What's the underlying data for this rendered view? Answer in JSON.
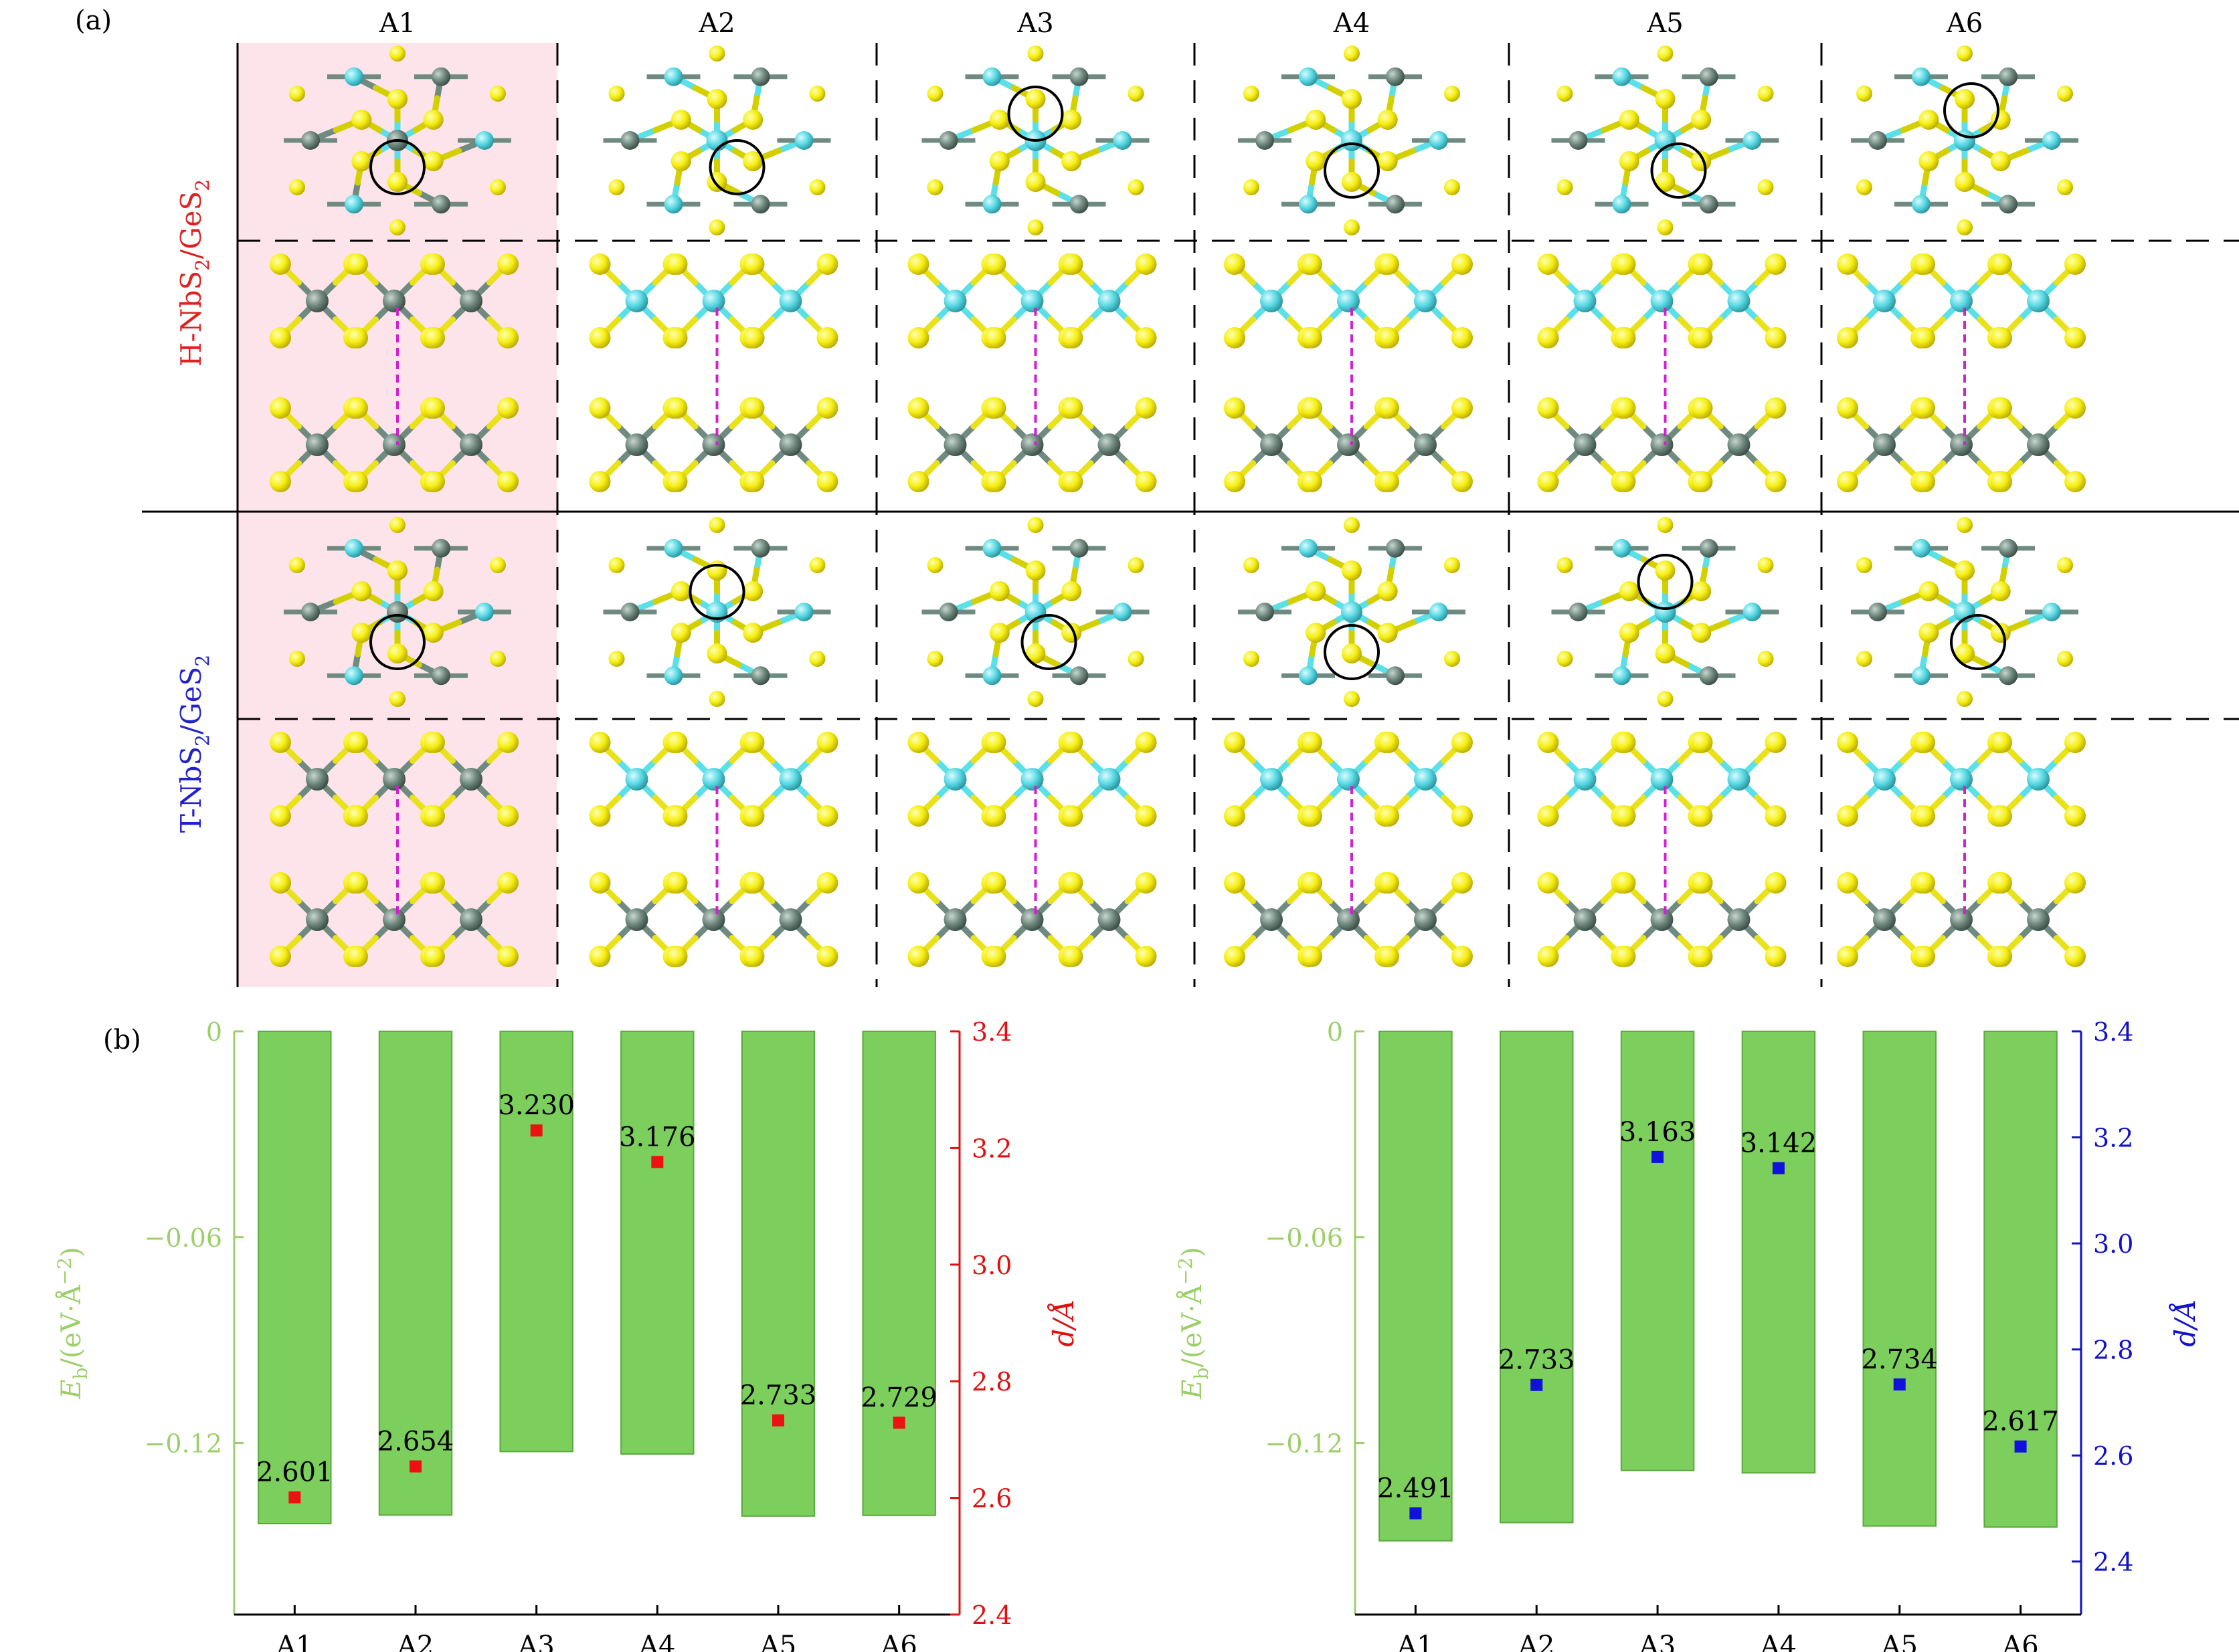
{
  "panel_a": {
    "label": "(a)",
    "columns": [
      "A1",
      "A2",
      "A3",
      "A4",
      "A5",
      "A6"
    ],
    "rows": [
      {
        "label_prefix": "H-NbS",
        "label_sub1": "2",
        "label_mid": "/GeS",
        "label_sub2": "2",
        "color": "#dd2222"
      },
      {
        "label_prefix": "T-NbS",
        "label_sub1": "2",
        "label_mid": "/GeS",
        "label_sub2": "2",
        "color": "#2222cc"
      }
    ],
    "highlight_color": "#fde4ea",
    "atom_colors": {
      "sulfur": "#ffff2a",
      "niobium": "#5ce0e8",
      "germanium": "#6f8a80"
    }
  },
  "panel_b_label": "(b)",
  "chart_data": [
    {
      "type": "bar",
      "categories": [
        "A1",
        "A2",
        "A3",
        "A4",
        "A5",
        "A6"
      ],
      "series": [
        {
          "axis": "left",
          "type": "bar",
          "values": [
            -0.1435,
            -0.141,
            -0.1225,
            -0.1232,
            -0.1413,
            -0.1411
          ],
          "color": "#7ccf5c"
        },
        {
          "axis": "right",
          "type": "scatter",
          "values": [
            2.601,
            2.654,
            3.23,
            3.176,
            2.733,
            2.729
          ],
          "labels": [
            "2.601",
            "2.654",
            "3.230",
            "3.176",
            "2.733",
            "2.729"
          ],
          "color": "#ee1111"
        }
      ],
      "ylabel_left": {
        "main": "E",
        "sub": "b",
        "rest": "/(eV·Å",
        "sup": "−2",
        "close": ")"
      },
      "ylabel_right": "d/Å",
      "ylim_left": [
        -0.17,
        0
      ],
      "ylim_right": [
        2.4,
        3.4
      ],
      "yticks_left": [
        "0",
        "−0.06",
        "−0.12"
      ],
      "yticks_right": [
        "2.4",
        "2.6",
        "2.8",
        "3.0",
        "3.2",
        "3.4"
      ],
      "left_axis_color": "#9ccf6a",
      "right_axis_color": "#dd1111"
    },
    {
      "type": "bar",
      "categories": [
        "A1",
        "A2",
        "A3",
        "A4",
        "A5",
        "A6"
      ],
      "series": [
        {
          "axis": "left",
          "type": "bar",
          "values": [
            -0.1485,
            -0.1432,
            -0.128,
            -0.1287,
            -0.1442,
            -0.1445
          ],
          "color": "#7ccf5c"
        },
        {
          "axis": "right",
          "type": "scatter",
          "values": [
            2.491,
            2.733,
            3.163,
            3.142,
            2.734,
            2.617
          ],
          "labels": [
            "2.491",
            "2.733",
            "3.163",
            "3.142",
            "2.734",
            "2.617"
          ],
          "color": "#1111dd"
        }
      ],
      "ylabel_left": {
        "main": "E",
        "sub": "b",
        "rest": "/(eV·Å",
        "sup": "−2",
        "close": ")"
      },
      "ylabel_right": "d/Å",
      "ylim_left": [
        -0.17,
        0
      ],
      "ylim_right": [
        2.3,
        3.4
      ],
      "yticks_left": [
        "0",
        "−0.06",
        "−0.12"
      ],
      "yticks_right": [
        "2.4",
        "2.6",
        "2.8",
        "3.0",
        "3.2",
        "3.4"
      ],
      "left_axis_color": "#9ccf6a",
      "right_axis_color": "#1111cc"
    }
  ]
}
